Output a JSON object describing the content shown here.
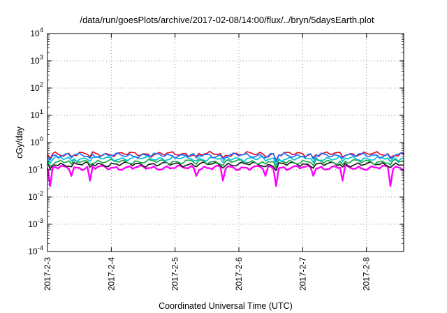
{
  "chart_data": {
    "type": "line",
    "title": "/data/run/goesPlots/archive/2017-02-08/14:00/flux/../bryn/5daysEarth.plot",
    "xlabel": "Coordinated Universal Time (UTC)",
    "ylabel": "cGy/day",
    "x_range": [
      "2017-2-3",
      "2017-2-8 14:00"
    ],
    "x_tick_labels": [
      "2017-2-3",
      "2017-2-4",
      "2017-2-5",
      "2017-2-6",
      "2017-2-7",
      "2017-2-8"
    ],
    "yscale": "log",
    "ylim": [
      0.0001,
      10000
    ],
    "y_tick_labels": [
      {
        "base": "10",
        "exp": "-4"
      },
      {
        "base": "10",
        "exp": "-3"
      },
      {
        "base": "10",
        "exp": "-2"
      },
      {
        "base": "10",
        "exp": "-1"
      },
      {
        "base": "10",
        "exp": "0"
      },
      {
        "base": "10",
        "exp": "1"
      },
      {
        "base": "10",
        "exp": "2"
      },
      {
        "base": "10",
        "exp": "3"
      },
      {
        "base": "10",
        "exp": "4"
      }
    ],
    "grid": true,
    "series": [
      {
        "color": "#ff00ff",
        "baseline": 0.12,
        "spike_lows": [
          0.025,
          0.06,
          0.04,
          0.06
        ]
      },
      {
        "color": "#1a1a1a",
        "baseline": 0.16
      },
      {
        "color": "#1aa84a",
        "baseline": 0.2
      },
      {
        "color": "#00c0d0",
        "baseline": 0.26
      },
      {
        "color": "#e0102a",
        "baseline": 0.38
      },
      {
        "color": "#1f6fff",
        "baseline": 0.34
      }
    ],
    "dips": [
      {
        "date": "2017-2-3 01:00",
        "depth": 0.6
      },
      {
        "date": "2017-2-3 09:00",
        "depth": 0.35
      },
      {
        "date": "2017-2-3 16:00",
        "depth": 0.4
      },
      {
        "date": "2017-2-4 04:30",
        "depth": 0.85
      },
      {
        "date": "2017-2-4 14:30",
        "depth": 0.65
      },
      {
        "date": "2017-2-5 08:00",
        "depth": 0.35
      },
      {
        "date": "2017-2-5 18:00",
        "depth": 0.5
      },
      {
        "date": "2017-2-6 10:00",
        "depth": 0.35
      },
      {
        "date": "2017-2-6 14:00",
        "depth": 0.75
      },
      {
        "date": "2017-2-7 04:00",
        "depth": 0.5
      },
      {
        "date": "2017-2-7 15:00",
        "depth": 0.4
      },
      {
        "date": "2017-2-8 00:30",
        "depth": 0.5
      },
      {
        "date": "2017-2-8 09:00",
        "depth": 0.45
      }
    ]
  }
}
